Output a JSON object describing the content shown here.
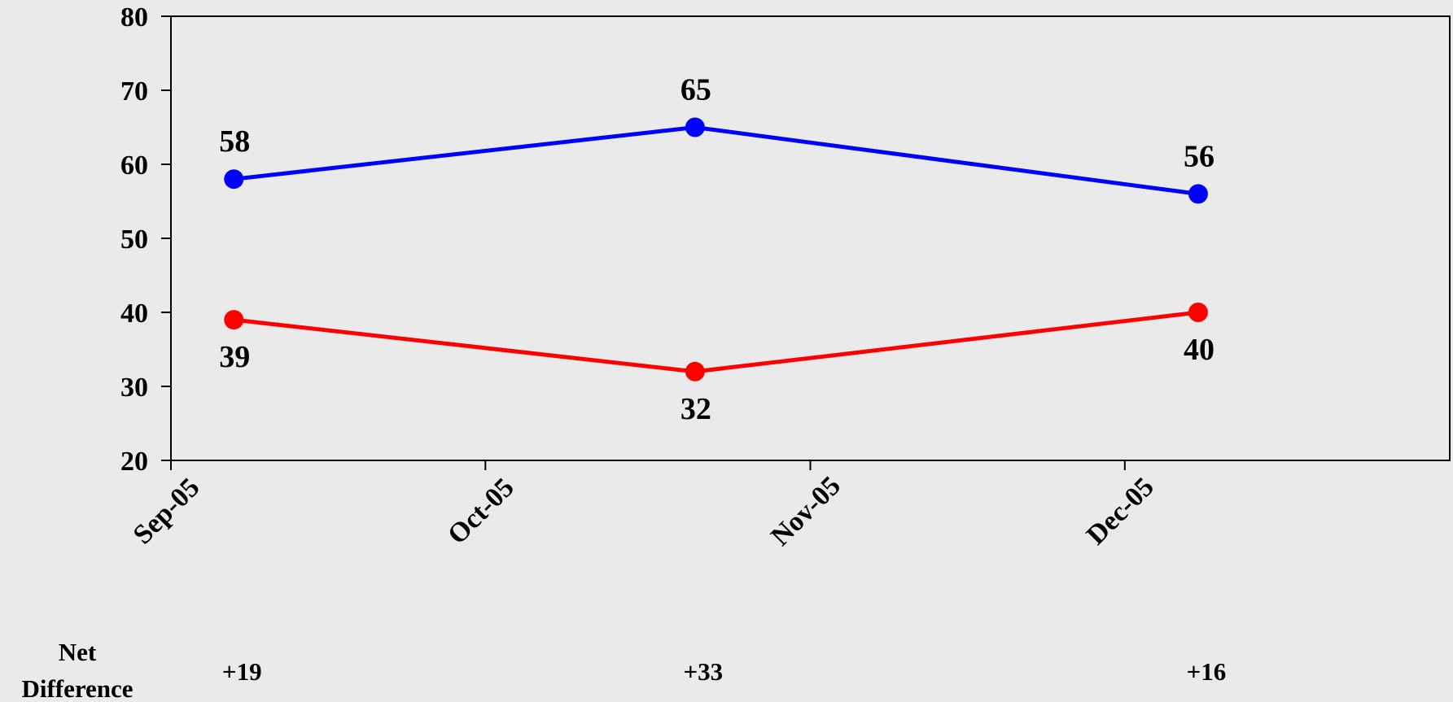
{
  "chart_data": {
    "type": "line",
    "title": "",
    "xlabel": "",
    "ylabel": "",
    "ylim": [
      20,
      80
    ],
    "yticks": [
      20,
      30,
      40,
      50,
      60,
      70,
      80
    ],
    "xlim": [
      "2005-09-01",
      "2006-01-01"
    ],
    "xticks": [
      {
        "date": "2005-09-01",
        "label": "Sep-05"
      },
      {
        "date": "2005-10-01",
        "label": "Oct-05"
      },
      {
        "date": "2005-11-01",
        "label": "Nov-05"
      },
      {
        "date": "2005-12-01",
        "label": "Dec-05"
      }
    ],
    "grid": false,
    "legend": "none",
    "series": [
      {
        "color": "#0000ff",
        "x": [
          "2005-09-07",
          "2005-10-21",
          "2005-12-08"
        ],
        "values": [
          58,
          65,
          56
        ],
        "labels": [
          "58",
          "65",
          "56"
        ],
        "label_position": "above"
      },
      {
        "color": "#ff0000",
        "x": [
          "2005-09-07",
          "2005-10-21",
          "2005-12-08"
        ],
        "values": [
          39,
          32,
          40
        ],
        "labels": [
          "39",
          "32",
          "40"
        ],
        "label_position": "below"
      }
    ],
    "net_difference": {
      "label_line1": "Net",
      "label_line2": "Difference",
      "x": [
        "2005-09-07",
        "2005-10-21",
        "2005-12-08"
      ],
      "values": [
        "+19",
        "+33",
        "+16"
      ]
    }
  }
}
